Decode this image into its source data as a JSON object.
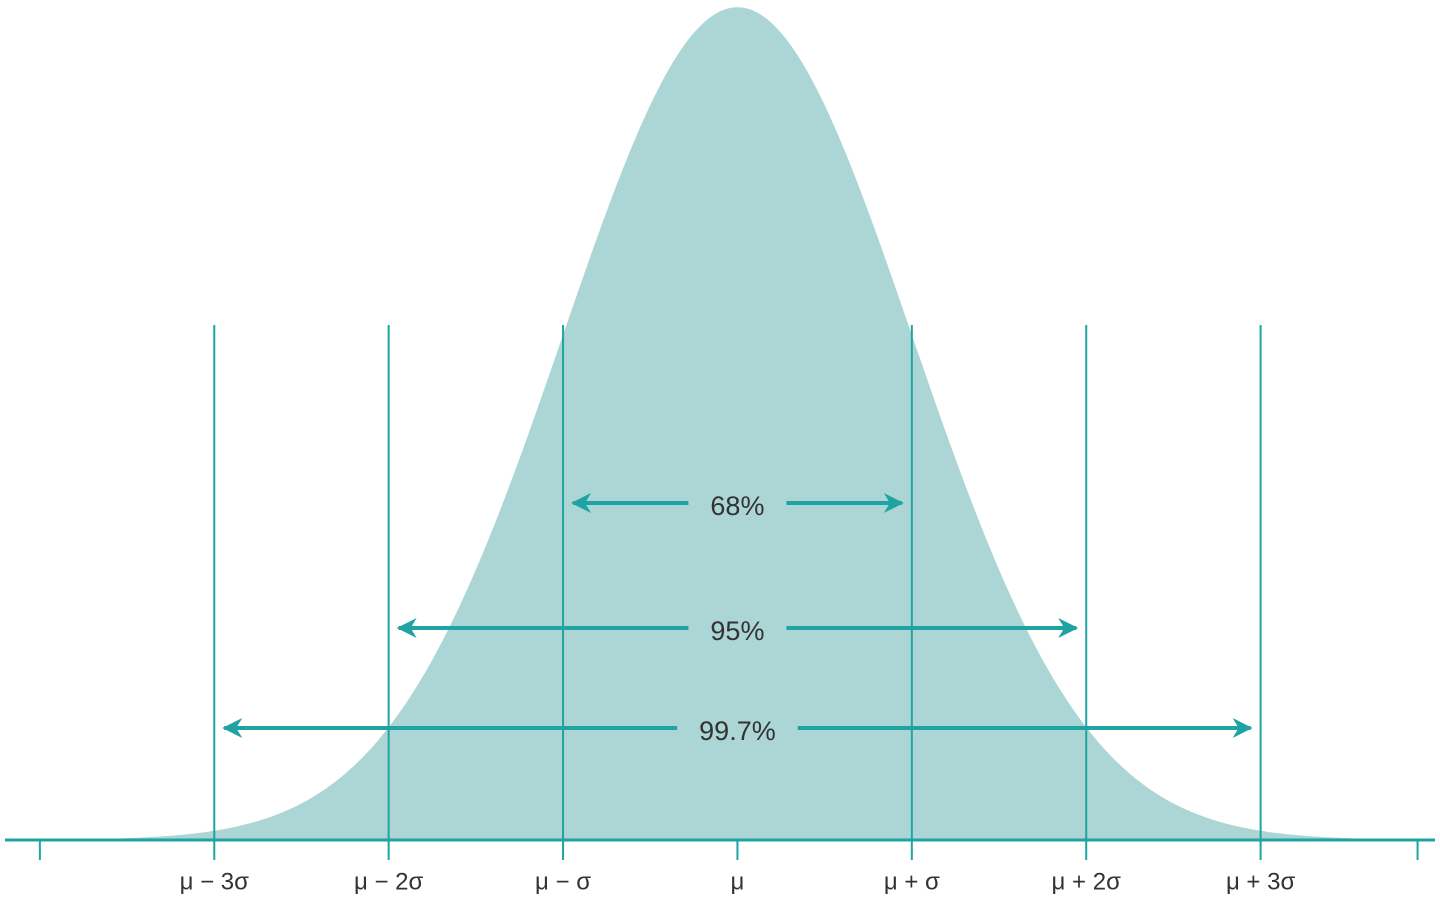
{
  "chart_data": {
    "type": "normal_curve",
    "mean": 0,
    "sd": 1,
    "fill_color": "#acd6d6",
    "line_color": "#1fa3a3",
    "xlim": [
      -4.2,
      4.0
    ],
    "ylim": [
      0,
      0.4
    ],
    "xticks": [
      {
        "value": -3,
        "label": "μ − 3σ"
      },
      {
        "value": -2,
        "label": "μ − 2σ"
      },
      {
        "value": -1,
        "label": "μ − σ"
      },
      {
        "value": 0,
        "label": "μ"
      },
      {
        "value": 1,
        "label": "μ + σ"
      },
      {
        "value": 2,
        "label": "μ + 2σ"
      },
      {
        "value": 3,
        "label": "μ + 3σ"
      }
    ],
    "xticks_unlabeled": [
      -4,
      3.9
    ],
    "intervals": {
      "values": [
        68,
        95,
        99.7
      ],
      "value_labels": [
        "68%",
        "95%",
        "99.7%"
      ],
      "ranges": [
        [
          -1,
          1
        ],
        [
          -2,
          2
        ],
        [
          -3,
          3
        ]
      ]
    }
  }
}
